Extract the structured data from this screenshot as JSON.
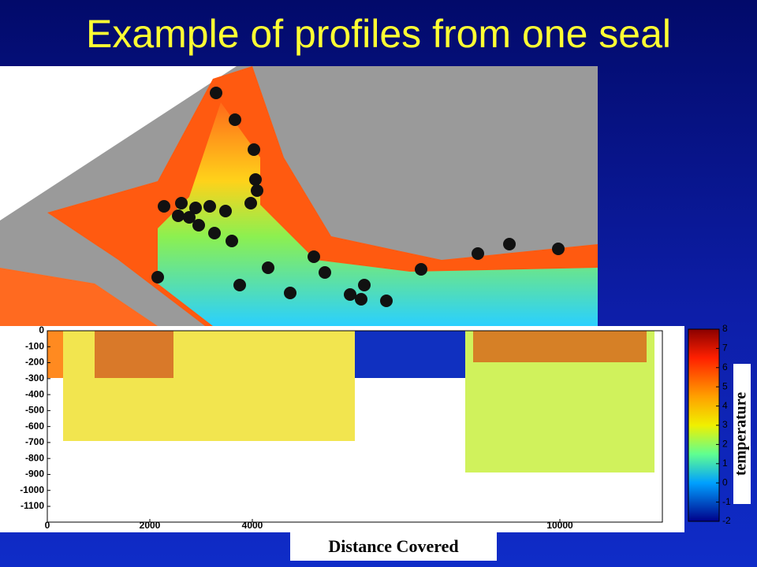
{
  "header": {
    "title": "Example of profiles from one seal"
  },
  "section_plot": {
    "yticks": [
      0,
      -100,
      -200,
      -300,
      -400,
      -500,
      -600,
      -700,
      -800,
      -900,
      -1000,
      -1100
    ],
    "xticks": [
      0,
      2000,
      4000,
      10000
    ],
    "colorbar": {
      "label": "temperature",
      "ticks": [
        8,
        7,
        6,
        5,
        4,
        3,
        2,
        1,
        0,
        -1,
        -2
      ]
    }
  },
  "caption": "Distance Covered"
}
